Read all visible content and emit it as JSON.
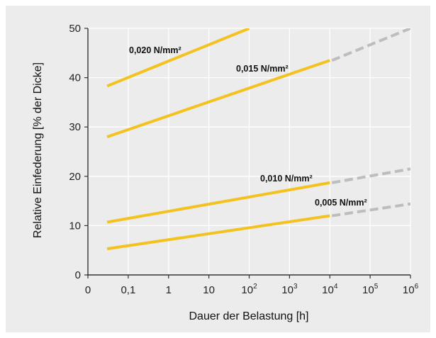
{
  "chart_data": {
    "type": "line",
    "xlabel": "Dauer der Belastung [h]",
    "ylabel": "Relative Einfederung [% der Dicke]",
    "ylim": [
      0,
      50
    ],
    "y_ticks": [
      0,
      10,
      20,
      30,
      40,
      50
    ],
    "x_categories": [
      {
        "base": "0",
        "exp": ""
      },
      {
        "base": "0,1",
        "exp": ""
      },
      {
        "base": "1",
        "exp": ""
      },
      {
        "base": "10",
        "exp": ""
      },
      {
        "base": "10",
        "exp": "2"
      },
      {
        "base": "10",
        "exp": "3"
      },
      {
        "base": "10",
        "exp": "4"
      },
      {
        "base": "10",
        "exp": "5"
      },
      {
        "base": "10",
        "exp": "6"
      }
    ],
    "grid": true,
    "series_colors": {
      "measured": "#f4c21e",
      "extrapolated": "#bdbdbd"
    },
    "series": [
      {
        "name": "0,020 N/mm²",
        "x_start": 0.03,
        "x_end": 100,
        "y_start": 38.3,
        "y_end": 50,
        "extrapolated": false
      },
      {
        "name": "0,015 N/mm²",
        "x_start": 0.03,
        "x_end": 10000,
        "y_start": 28,
        "y_end": 43.5,
        "extrapolated": true,
        "extrap_x_end": 1000000,
        "extrap_y_end": 50
      },
      {
        "name": "0,010 N/mm²",
        "x_start": 0.03,
        "x_end": 10000,
        "y_start": 10.7,
        "y_end": 18.7,
        "extrapolated": true,
        "extrap_x_end": 1000000,
        "extrap_y_end": 21.5
      },
      {
        "name": "0,005 N/mm²",
        "x_start": 0.03,
        "x_end": 10000,
        "y_start": 5.3,
        "y_end": 12,
        "extrapolated": true,
        "extrap_x_end": 1000000,
        "extrap_y_end": 14.4
      }
    ]
  }
}
